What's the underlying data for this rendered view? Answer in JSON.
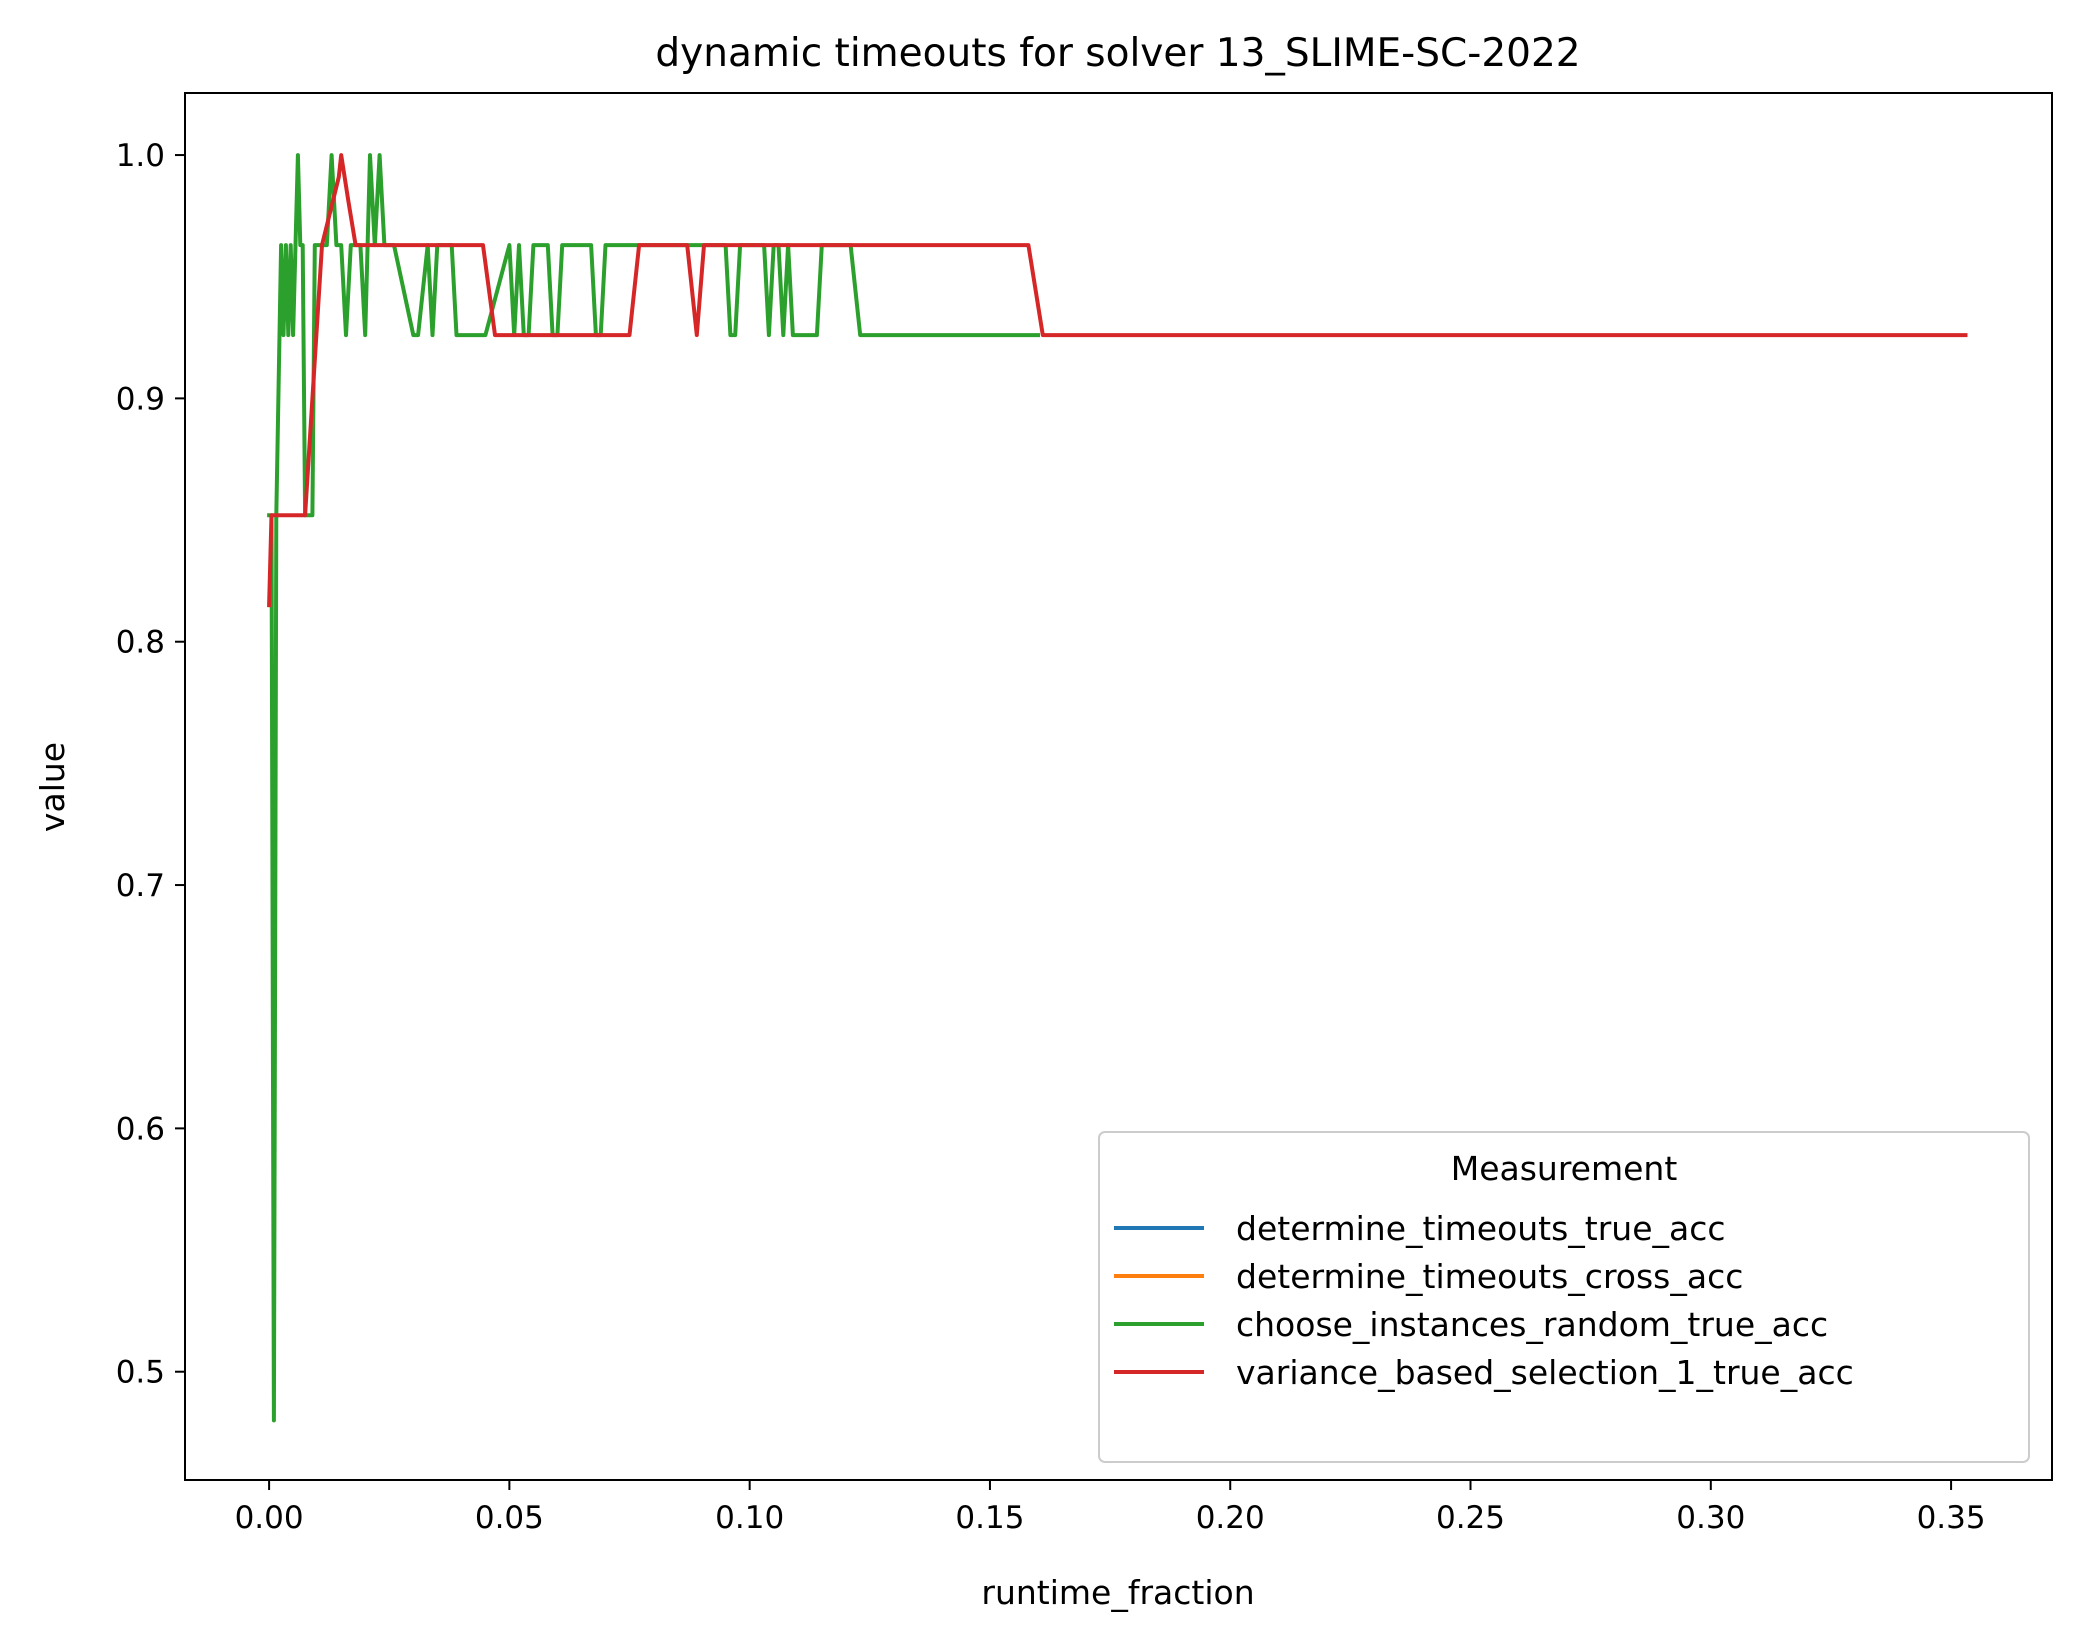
{
  "chart_data": {
    "type": "line",
    "title": "dynamic timeouts for solver 13_SLIME-SC-2022",
    "xlabel": "runtime_fraction",
    "ylabel": "value",
    "xlim": [
      -0.0175,
      0.371
    ],
    "ylim": [
      0.4555,
      1.0255
    ],
    "xticks": [
      0.0,
      0.05,
      0.1,
      0.15,
      0.2,
      0.25,
      0.3,
      0.35
    ],
    "xtick_labels": [
      "0.00",
      "0.05",
      "0.10",
      "0.15",
      "0.20",
      "0.25",
      "0.30",
      "0.35"
    ],
    "yticks": [
      0.5,
      0.6,
      0.7,
      0.8,
      0.9,
      1.0
    ],
    "ytick_labels": [
      "0.5",
      "0.6",
      "0.7",
      "0.8",
      "0.9",
      "1.0"
    ],
    "grid": false,
    "legend": {
      "title": "Measurement",
      "placement": "lower-right"
    },
    "series": [
      {
        "name": "determine_timeouts_true_acc",
        "color": "#1f77b4",
        "x": [],
        "y": []
      },
      {
        "name": "determine_timeouts_cross_acc",
        "color": "#ff7f0e",
        "x": [],
        "y": []
      },
      {
        "name": "choose_instances_random_true_acc",
        "color": "#2ca02c",
        "x": [
          0.0,
          0.0005,
          0.001,
          0.0015,
          0.0025,
          0.003,
          0.0035,
          0.004,
          0.0045,
          0.005,
          0.0055,
          0.006,
          0.0065,
          0.007,
          0.0075,
          0.008,
          0.0085,
          0.009,
          0.0095,
          0.0105,
          0.011,
          0.012,
          0.013,
          0.014,
          0.015,
          0.016,
          0.017,
          0.018,
          0.019,
          0.02,
          0.021,
          0.022,
          0.023,
          0.024,
          0.025,
          0.026,
          0.03,
          0.031,
          0.033,
          0.034,
          0.035,
          0.036,
          0.037,
          0.038,
          0.039,
          0.04,
          0.045,
          0.05,
          0.051,
          0.052,
          0.053,
          0.054,
          0.055,
          0.057,
          0.058,
          0.059,
          0.06,
          0.061,
          0.066,
          0.067,
          0.068,
          0.069,
          0.07,
          0.071,
          0.095,
          0.096,
          0.097,
          0.098,
          0.1,
          0.103,
          0.104,
          0.105,
          0.106,
          0.107,
          0.108,
          0.109,
          0.113,
          0.114,
          0.115,
          0.121,
          0.123,
          0.16
        ],
        "y": [
          0.852,
          0.852,
          0.48,
          0.852,
          0.963,
          0.926,
          0.963,
          0.926,
          0.963,
          0.926,
          0.963,
          1.0,
          0.963,
          0.963,
          0.852,
          0.852,
          0.852,
          0.852,
          0.963,
          0.963,
          0.963,
          0.963,
          1.0,
          0.963,
          0.963,
          0.926,
          0.963,
          0.963,
          0.963,
          0.926,
          1.0,
          0.963,
          1.0,
          0.963,
          0.963,
          0.963,
          0.926,
          0.926,
          0.963,
          0.926,
          0.963,
          0.963,
          0.963,
          0.963,
          0.926,
          0.926,
          0.926,
          0.963,
          0.926,
          0.963,
          0.926,
          0.926,
          0.963,
          0.963,
          0.963,
          0.926,
          0.926,
          0.963,
          0.963,
          0.963,
          0.926,
          0.926,
          0.963,
          0.963,
          0.963,
          0.926,
          0.926,
          0.963,
          0.963,
          0.963,
          0.926,
          0.963,
          0.963,
          0.926,
          0.963,
          0.926,
          0.926,
          0.926,
          0.963,
          0.963,
          0.926,
          0.926
        ]
      },
      {
        "name": "variance_based_selection_1_true_acc",
        "color": "#d62728",
        "x": [
          0.0,
          0.0005,
          0.001,
          0.0015,
          0.0075,
          0.011,
          0.0145,
          0.015,
          0.0165,
          0.018,
          0.0445,
          0.047,
          0.075,
          0.077,
          0.087,
          0.089,
          0.0905,
          0.158,
          0.161,
          0.353
        ],
        "y": [
          0.815,
          0.852,
          0.852,
          0.852,
          0.852,
          0.963,
          0.991,
          1.0,
          0.981,
          0.963,
          0.963,
          0.926,
          0.926,
          0.963,
          0.963,
          0.926,
          0.963,
          0.963,
          0.926,
          0.926
        ]
      }
    ]
  }
}
